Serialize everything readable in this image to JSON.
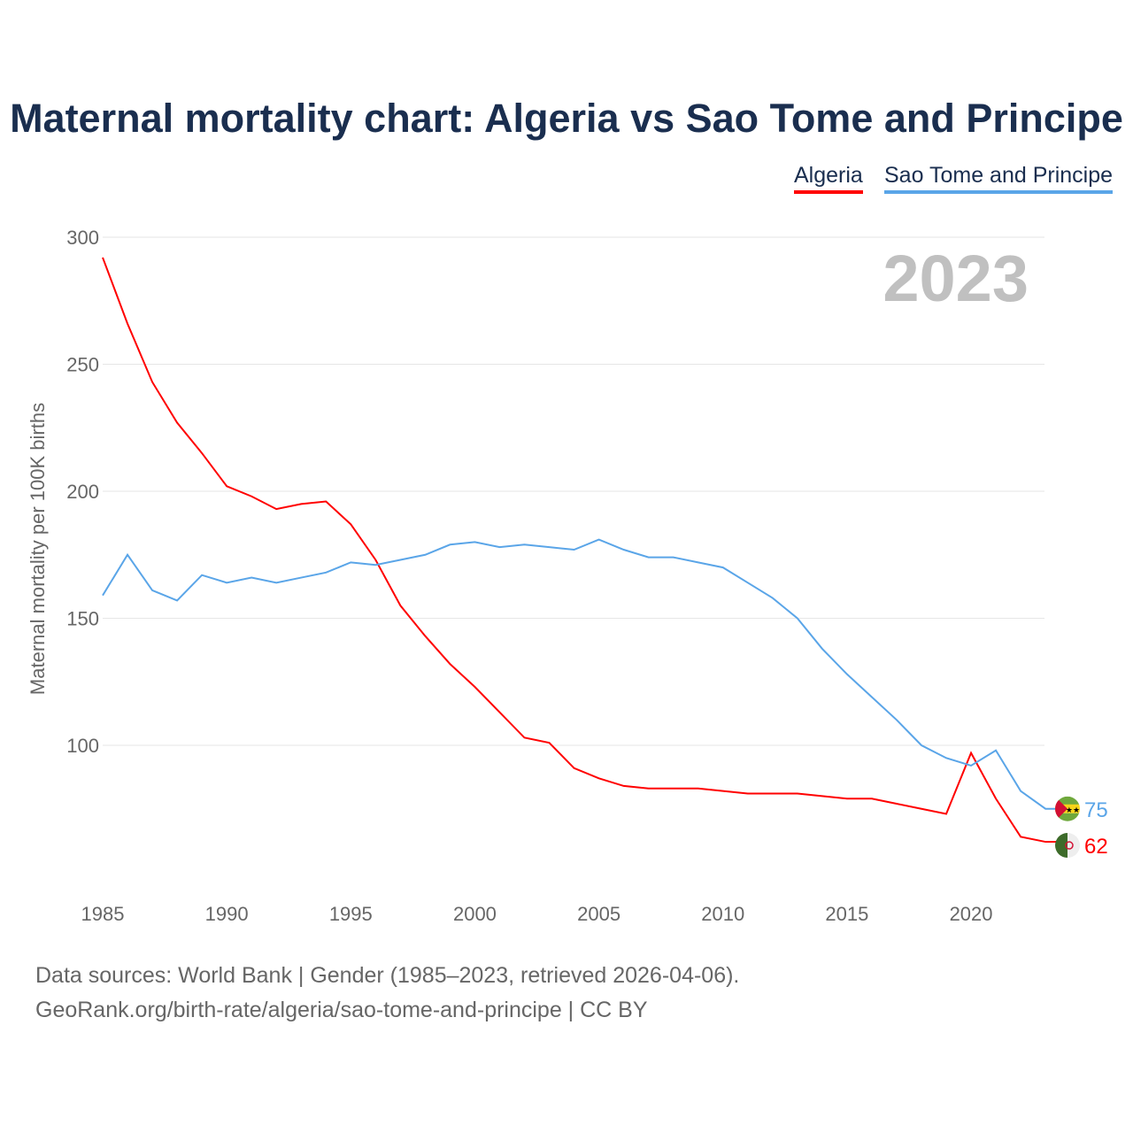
{
  "chart_data": {
    "type": "line",
    "title": "Maternal mortality chart: Algeria vs Sao Tome and Principe",
    "ylabel": "Maternal mortality per 100K births",
    "xlabel": "",
    "ylim": [
      40,
      300
    ],
    "xlim": [
      1985,
      2023
    ],
    "yticks": [
      100,
      150,
      200,
      250,
      300
    ],
    "xticks": [
      1985,
      1990,
      1995,
      2000,
      2005,
      2010,
      2015,
      2020
    ],
    "year_label": "2023",
    "x": [
      1985,
      1986,
      1987,
      1988,
      1989,
      1990,
      1991,
      1992,
      1993,
      1994,
      1995,
      1996,
      1997,
      1998,
      1999,
      2000,
      2001,
      2002,
      2003,
      2004,
      2005,
      2006,
      2007,
      2008,
      2009,
      2010,
      2011,
      2012,
      2013,
      2014,
      2015,
      2016,
      2017,
      2018,
      2019,
      2020,
      2021,
      2022,
      2023
    ],
    "series": [
      {
        "name": "Algeria",
        "color": "#ff0000",
        "end_label": "62",
        "values": [
          292,
          266,
          243,
          227,
          215,
          202,
          198,
          193,
          195,
          196,
          187,
          173,
          155,
          143,
          132,
          123,
          113,
          103,
          101,
          91,
          87,
          84,
          83,
          83,
          83,
          82,
          81,
          81,
          81,
          80,
          79,
          79,
          77,
          75,
          73,
          97,
          79,
          64,
          62
        ]
      },
      {
        "name": "Sao Tome and Principe",
        "color": "#5aa5e8",
        "end_label": "75",
        "values": [
          159,
          175,
          161,
          157,
          167,
          164,
          166,
          164,
          166,
          168,
          172,
          171,
          173,
          175,
          179,
          180,
          178,
          179,
          178,
          177,
          181,
          177,
          174,
          174,
          172,
          170,
          164,
          158,
          150,
          138,
          128,
          119,
          110,
          100,
          95,
          92,
          98,
          82,
          75
        ]
      }
    ]
  },
  "footer": {
    "line1": "Data sources: World Bank | Gender (1985–2023, retrieved 2026-04-06).",
    "line2": "GeoRank.org/birth-rate/algeria/sao-tome-and-principe | CC BY"
  }
}
